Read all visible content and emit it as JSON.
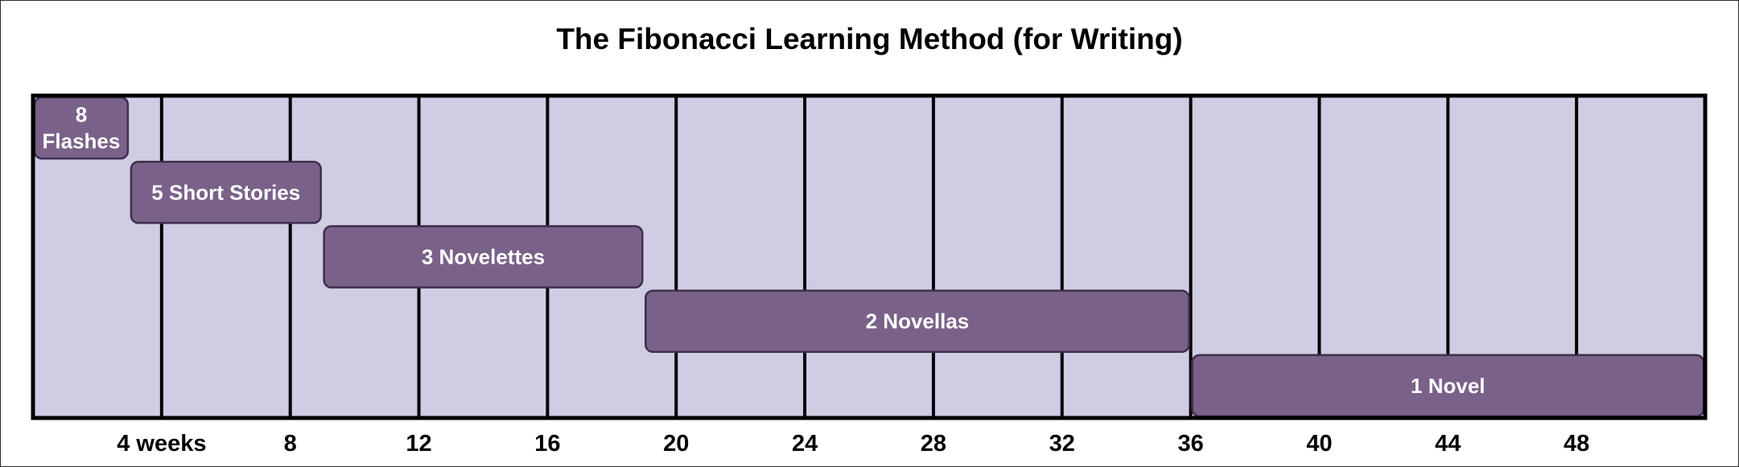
{
  "chart_data": {
    "type": "bar",
    "orientation": "horizontal-timeline",
    "title": "The Fibonacci Learning Method (for Writing)",
    "xlim": [
      0,
      52
    ],
    "grid": true,
    "x_ticks": [
      {
        "value": 4,
        "label": "4 weeks"
      },
      {
        "value": 8,
        "label": "8"
      },
      {
        "value": 12,
        "label": "12"
      },
      {
        "value": 16,
        "label": "16"
      },
      {
        "value": 20,
        "label": "20"
      },
      {
        "value": 24,
        "label": "24"
      },
      {
        "value": 28,
        "label": "28"
      },
      {
        "value": 32,
        "label": "32"
      },
      {
        "value": 36,
        "label": "36"
      },
      {
        "value": 40,
        "label": "40"
      },
      {
        "value": 44,
        "label": "44"
      },
      {
        "value": 48,
        "label": "48"
      }
    ],
    "bars": [
      {
        "label": "8 Flashes",
        "lines": [
          "8",
          "Flashes"
        ],
        "start": 0,
        "end": 3
      },
      {
        "label": "5 Short Stories",
        "lines": [
          "5 Short Stories"
        ],
        "start": 3,
        "end": 9
      },
      {
        "label": "3 Novelettes",
        "lines": [
          "3 Novelettes"
        ],
        "start": 9,
        "end": 19
      },
      {
        "label": "2 Novellas",
        "lines": [
          "2 Novellas"
        ],
        "start": 19,
        "end": 36
      },
      {
        "label": "1 Novel",
        "lines": [
          "1 Novel"
        ],
        "start": 36,
        "end": 52
      }
    ]
  },
  "colors": {
    "plot_background": "#cfcce3",
    "bar_fill": "#7a6189",
    "bar_stroke": "#3f2f4d",
    "grid_line": "#000000",
    "bar_text": "#ffffff"
  }
}
